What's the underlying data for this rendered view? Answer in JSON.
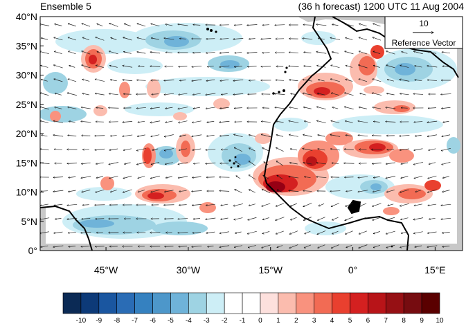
{
  "header": {
    "title_left": "Ensemble 5",
    "title_right": "(36 h forecast) 1200 UTC 11 Aug 2004"
  },
  "map": {
    "lon_range": [
      -57,
      20
    ],
    "lat_range": [
      0,
      40
    ],
    "y_ticks": [
      "0°",
      "5°N",
      "10°N",
      "15°N",
      "20°N",
      "25°N",
      "30°N",
      "35°N",
      "40°N"
    ],
    "y_tick_values": [
      0,
      5,
      10,
      15,
      20,
      25,
      30,
      35,
      40
    ],
    "x_ticks": [
      "45°W",
      "30°W",
      "15°W",
      "0°",
      "15°E"
    ],
    "x_tick_values": [
      -45,
      -30,
      -15,
      0,
      15
    ]
  },
  "reference_vector": {
    "magnitude": "10",
    "label": "Reference Vector"
  },
  "colorbar": {
    "labels": [
      "-10",
      "-9",
      "-8",
      "-7",
      "-6",
      "-5",
      "-4",
      "-3",
      "-2",
      "-1",
      "0",
      "1",
      "2",
      "3",
      "4",
      "5",
      "6",
      "7",
      "8",
      "9",
      "10"
    ],
    "colors": [
      "#0b2a55",
      "#0d3a78",
      "#1a56a0",
      "#2a6cb5",
      "#3581c0",
      "#4d97ca",
      "#6fb3d9",
      "#9ed3e3",
      "#cdeef6",
      "#ffffff",
      "#ffffff",
      "#fde0dd",
      "#fbbcae",
      "#f9927e",
      "#f26b54",
      "#e9402f",
      "#d42020",
      "#b81418",
      "#961014",
      "#760c10",
      "#5a0000"
    ]
  },
  "colors": {
    "land_outline": "#000000",
    "no_data": "#c8c8c8"
  }
}
